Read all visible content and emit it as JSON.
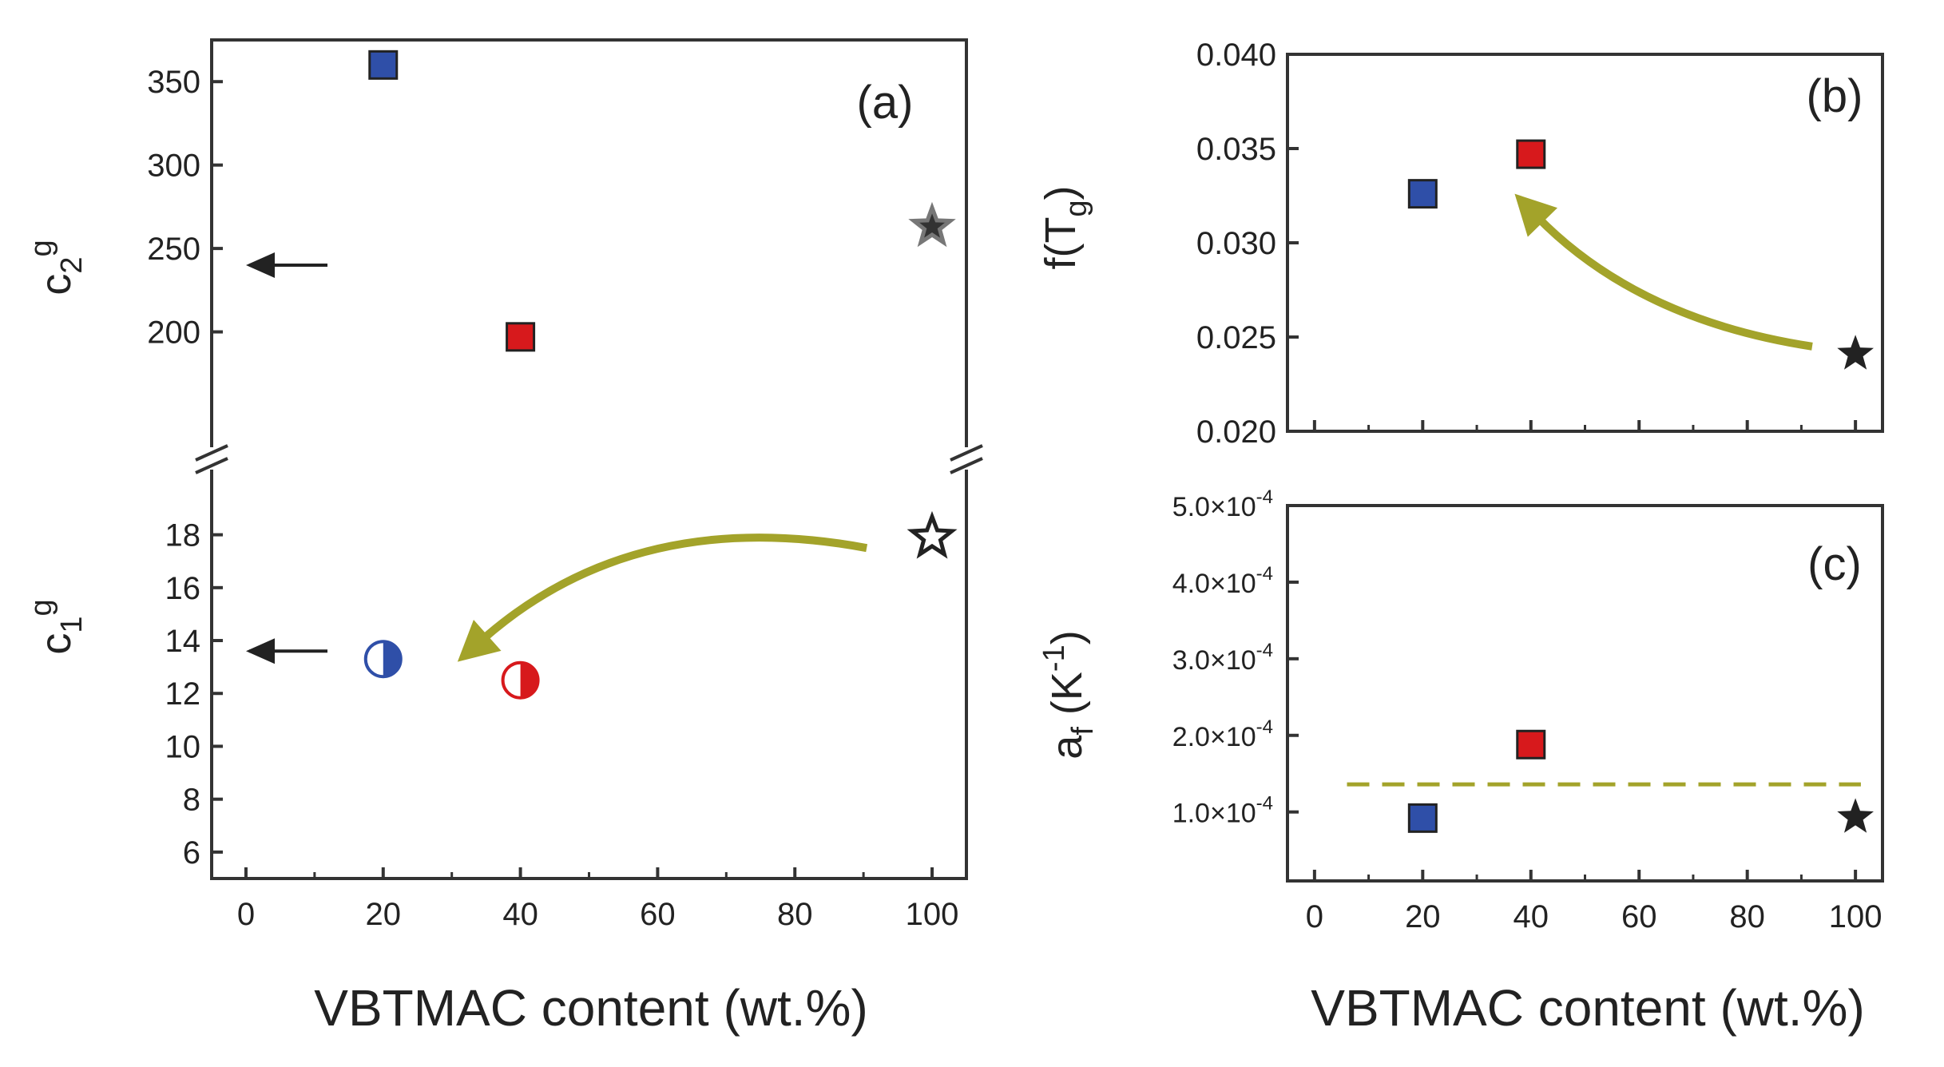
{
  "colors": {
    "blue": "#2f4fa8",
    "red": "#d7191c",
    "olive": "#a3a32a",
    "gray": "#666666",
    "black": "#222222"
  },
  "chart_data": [
    {
      "id": "a",
      "type": "scatter",
      "panel_label": "(a)",
      "xlabel": "VBTMAC content (wt.%)",
      "xlim": [
        -5,
        105
      ],
      "xticks": [
        0,
        20,
        40,
        60,
        80,
        100
      ],
      "upper": {
        "ylabel": "c",
        "ylabel_sub": "2",
        "ylabel_sup": "g",
        "ylim": [
          150,
          375
        ],
        "yticks": [
          200,
          250,
          300,
          350
        ],
        "points": [
          {
            "x": 20,
            "y": 360,
            "marker": "square",
            "color": "blue"
          },
          {
            "x": 40,
            "y": 197,
            "marker": "square",
            "color": "red"
          },
          {
            "x": 100,
            "y": 263,
            "marker": "star",
            "color": "gray"
          }
        ],
        "arrow_toward_axis_y": 240
      },
      "lower": {
        "ylabel": "c",
        "ylabel_sub": "1",
        "ylabel_sup": "g",
        "ylim": [
          5,
          19.8
        ],
        "yticks": [
          6,
          8,
          10,
          12,
          14,
          16,
          18
        ],
        "points": [
          {
            "x": 20,
            "y": 13.3,
            "marker": "half-circle",
            "color": "blue"
          },
          {
            "x": 40,
            "y": 12.5,
            "marker": "half-circle",
            "color": "red"
          },
          {
            "x": 100,
            "y": 17.9,
            "marker": "star-open",
            "color": "black"
          }
        ],
        "arrow_toward_axis_y": 13.6,
        "trend_arrow": {
          "from": [
            90,
            17.5
          ],
          "to": [
            32,
            13.5
          ]
        }
      }
    },
    {
      "id": "b",
      "type": "scatter",
      "panel_label": "(b)",
      "ylabel": "f(T",
      "ylabel_sub": "g",
      "ylabel_end": ")",
      "xlim": [
        -5,
        105
      ],
      "ylim": [
        0.02,
        0.04
      ],
      "yticks": [
        "0.020",
        "0.025",
        "0.030",
        "0.035",
        "0.040"
      ],
      "ytick_values": [
        0.02,
        0.025,
        0.03,
        0.035,
        0.04
      ],
      "points": [
        {
          "x": 20,
          "y": 0.0326,
          "marker": "square",
          "color": "blue"
        },
        {
          "x": 40,
          "y": 0.0347,
          "marker": "square",
          "color": "red"
        },
        {
          "x": 100,
          "y": 0.0241,
          "marker": "star",
          "color": "black"
        }
      ],
      "trend_arrow": {
        "from": [
          92,
          0.0245
        ],
        "to": [
          37,
          0.0326
        ]
      }
    },
    {
      "id": "c",
      "type": "scatter",
      "panel_label": "(c)",
      "ylabel": "a",
      "ylabel_sub": "f",
      "ylabel_mid": " (K",
      "ylabel_sup": "-1",
      "ylabel_end": ")",
      "xlabel": "VBTMAC content (wt.%)",
      "xlim": [
        -5,
        105
      ],
      "xticks": [
        0,
        20,
        40,
        60,
        80,
        100
      ],
      "ylim": [
        1e-05,
        0.0005
      ],
      "ytick_values": [
        0.0001,
        0.0002,
        0.0003,
        0.0004,
        0.0005
      ],
      "yticks": [
        {
          "mant": "1.0×10",
          "exp": "-4"
        },
        {
          "mant": "2.0×10",
          "exp": "-4"
        },
        {
          "mant": "3.0×10",
          "exp": "-4"
        },
        {
          "mant": "4.0×10",
          "exp": "-4"
        },
        {
          "mant": "5.0×10",
          "exp": "-4"
        }
      ],
      "points": [
        {
          "x": 20,
          "y": 9.2e-05,
          "marker": "square",
          "color": "blue"
        },
        {
          "x": 40,
          "y": 0.000188,
          "marker": "square",
          "color": "red"
        },
        {
          "x": 100,
          "y": 9.3e-05,
          "marker": "star",
          "color": "black"
        }
      ],
      "reference_line": {
        "y": 0.000136,
        "x_from": 6,
        "x_to": 101,
        "style": "dashed"
      }
    }
  ]
}
